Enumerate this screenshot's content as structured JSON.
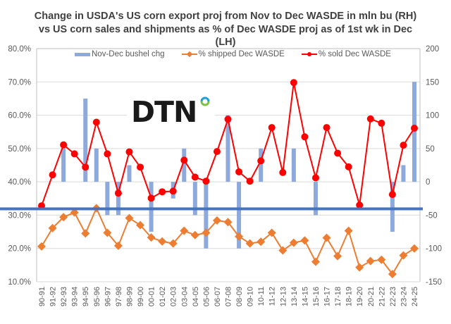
{
  "chart_data": {
    "type": "bar+line",
    "title": [
      "Change in USDA's US corn export proj from Nov to Dec WASDE in mln bu (RH)",
      "vs  US corn sales and shipments as % of Dec WASDE proj as of 1st wk in Dec",
      "(LH)"
    ],
    "xlabel": "",
    "ylabel_left": "",
    "ylabel_right": "",
    "ylim_left": [
      0.1,
      0.8
    ],
    "yticks_left": [
      "80.0%",
      "70.0%",
      "60.0%",
      "50.0%",
      "40.0%",
      "30.0%",
      "20.0%",
      "10.0%"
    ],
    "ylim_right": [
      -150,
      200
    ],
    "yticks_right": [
      "200",
      "150",
      "100",
      "50",
      "0",
      "-50",
      "-100",
      "-150"
    ],
    "grid": true,
    "legend_position": "top",
    "categories": [
      "90-91",
      "91-92",
      "92-93",
      "93-94",
      "94-95",
      "95-96",
      "96-97",
      "97-98",
      "98-99",
      "99-00",
      "00-01",
      "01-02",
      "02-03",
      "03-04",
      "04-05",
      "05-06",
      "06-07",
      "07-08",
      "08-09",
      "09-10",
      "10-11",
      "11-12",
      "12-13",
      "13-14",
      "14-15",
      "15-16",
      "16-17",
      "17-18",
      "18-19",
      "19-20",
      "20-21",
      "21-22",
      "22-23",
      "23-24",
      "24-25"
    ],
    "series": [
      {
        "name": "Nov-Dec bushel chg",
        "type": "bar",
        "axis": "right",
        "color": "#8EA9DB",
        "values": [
          0,
          0,
          50,
          0,
          125,
          50,
          -50,
          -50,
          25,
          0,
          -75,
          0,
          -25,
          50,
          -50,
          -100,
          0,
          100,
          -100,
          0,
          50,
          0,
          0,
          50,
          0,
          -50,
          0,
          0,
          0,
          0,
          0,
          0,
          -75,
          25,
          150
        ]
      },
      {
        "name": "% shipped Dec WASDE",
        "type": "line",
        "marker": "diamond",
        "axis": "left",
        "color": "#ED7D31",
        "values": [
          20.6,
          26.1,
          29.4,
          30.8,
          24.5,
          32.1,
          24.7,
          20.8,
          29.1,
          27.0,
          23.3,
          22.1,
          21.5,
          25.3,
          24.0,
          24.7,
          28.4,
          27.9,
          23.6,
          21.5,
          22.0,
          24.7,
          19.4,
          21.7,
          22.4,
          16.0,
          23.2,
          17.7,
          25.3,
          14.3,
          16.2,
          16.6,
          12.3,
          17.9,
          20.0
        ]
      },
      {
        "name": "% sold Dec WASDE",
        "type": "line",
        "marker": "circle",
        "axis": "left",
        "color": "#FF0000",
        "values": [
          32.8,
          42.1,
          51.1,
          48.4,
          44.4,
          57.9,
          48.4,
          36.6,
          49.0,
          44.4,
          35.1,
          37.0,
          37.2,
          46.5,
          41.4,
          40.2,
          49.1,
          58.8,
          43.0,
          40.2,
          46.3,
          56.3,
          42.8,
          69.8,
          53.5,
          41.2,
          56.3,
          48.6,
          44.5,
          33.0,
          58.9,
          57.6,
          36.2,
          51.0,
          56.1
        ]
      }
    ],
    "annotations": [
      {
        "type": "horizontal-line",
        "color": "#4472C4",
        "at_left_axis_pct": 31.9
      }
    ]
  },
  "logo": {
    "text": "DTN",
    "ring_colors": [
      "#1E9FD8",
      "#7CC242"
    ]
  }
}
